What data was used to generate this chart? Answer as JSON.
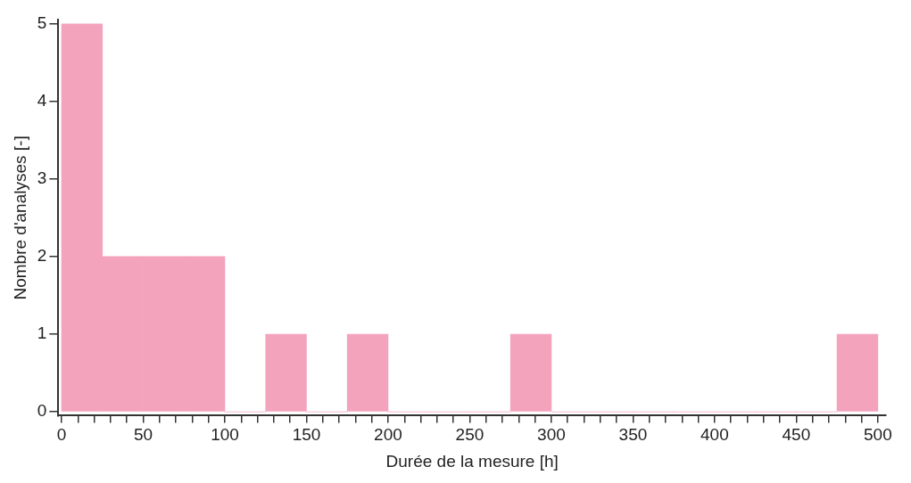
{
  "chart_data": {
    "type": "histogram",
    "xlabel": "Durée de la mesure [h]",
    "ylabel": "Nombre d'analyses [-]",
    "bins": [
      0,
      25,
      50,
      75,
      100,
      125,
      150,
      175,
      200,
      225,
      250,
      275,
      300,
      325,
      350,
      375,
      400,
      425,
      450,
      475,
      500
    ],
    "values": [
      5,
      2,
      2,
      2,
      0,
      1,
      0,
      1,
      0,
      0,
      0,
      1,
      0,
      0,
      0,
      0,
      0,
      0,
      0,
      1
    ],
    "color": "#f4a3bd",
    "xlim": [
      -2,
      505
    ],
    "ylim": [
      -0.05,
      5.05
    ],
    "xticks": [
      0,
      {
        "value": 10,
        "label": null
      },
      {
        "value": 20,
        "label": null
      },
      {
        "value": 30,
        "label": null
      },
      {
        "value": 40,
        "label": null
      },
      50,
      {
        "value": 60,
        "label": null
      },
      {
        "value": 70,
        "label": null
      },
      {
        "value": 80,
        "label": null
      },
      {
        "value": 90,
        "label": null
      },
      100,
      {
        "value": 110,
        "label": null
      },
      {
        "value": 120,
        "label": null
      },
      {
        "value": 130,
        "label": null
      },
      {
        "value": 140,
        "label": null
      },
      150,
      {
        "value": 160,
        "label": null
      },
      {
        "value": 170,
        "label": null
      },
      {
        "value": 180,
        "label": null
      },
      {
        "value": 190,
        "label": null
      },
      200,
      {
        "value": 210,
        "label": null
      },
      {
        "value": 220,
        "label": null
      },
      {
        "value": 230,
        "label": null
      },
      {
        "value": 240,
        "label": null
      },
      250,
      {
        "value": 260,
        "label": null
      },
      {
        "value": 270,
        "label": null
      },
      {
        "value": 280,
        "label": null
      },
      {
        "value": 290,
        "label": null
      },
      300,
      {
        "value": 310,
        "label": null
      },
      {
        "value": 320,
        "label": null
      },
      {
        "value": 330,
        "label": null
      },
      {
        "value": 340,
        "label": null
      },
      350,
      {
        "value": 360,
        "label": null
      },
      {
        "value": 370,
        "label": null
      },
      {
        "value": 380,
        "label": null
      },
      {
        "value": 390,
        "label": null
      },
      400,
      {
        "value": 410,
        "label": null
      },
      {
        "value": 420,
        "label": null
      },
      {
        "value": 430,
        "label": null
      },
      {
        "value": 440,
        "label": null
      },
      450,
      {
        "value": 460,
        "label": null
      },
      {
        "value": 470,
        "label": null
      },
      {
        "value": 480,
        "label": null
      },
      {
        "value": 490,
        "label": null
      },
      500
    ],
    "yticks": [
      0,
      1,
      2,
      3,
      4,
      5
    ],
    "grid": false,
    "legend": false
  }
}
